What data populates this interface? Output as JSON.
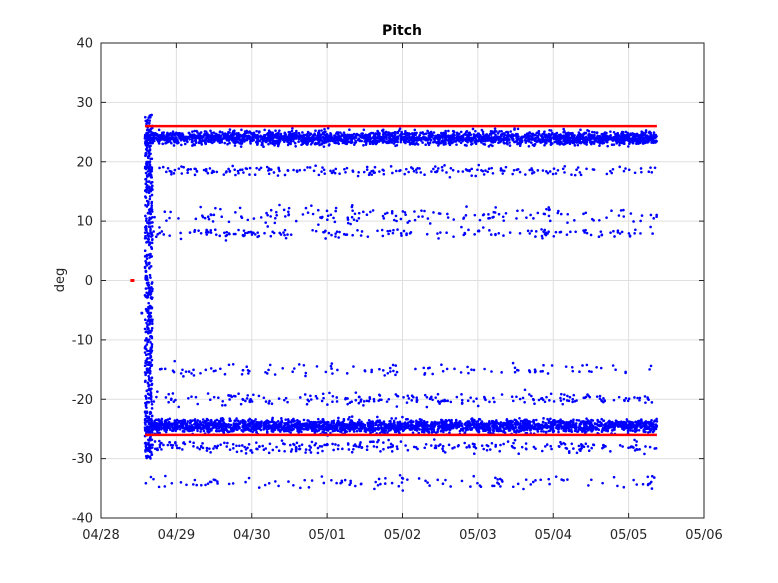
{
  "chart_data": {
    "type": "scatter",
    "title": "Pitch",
    "xlabel": "",
    "ylabel": "deg",
    "xlim": [
      "04/28",
      "05/06"
    ],
    "ylim": [
      -40,
      40
    ],
    "grid": true,
    "x_ticks": [
      "04/28",
      "04/29",
      "04/30",
      "05/01",
      "05/02",
      "05/03",
      "05/04",
      "05/05",
      "05/06"
    ],
    "y_ticks": [
      -40,
      -30,
      -20,
      -10,
      0,
      10,
      20,
      30,
      40
    ],
    "series": [
      {
        "color": "#0000ff",
        "x_range": [
          "04/28 14:00",
          "05/05 09:00"
        ],
        "clusters": [
          {
            "y_center": 24,
            "spread": 1.6
          },
          {
            "y_center": 18.5,
            "spread": 1.2
          },
          {
            "y_center": 11,
            "spread": 2
          },
          {
            "y_center": 8,
            "spread": 1.3
          },
          {
            "y_center": -15,
            "spread": 1.4
          },
          {
            "y_center": -20,
            "spread": 1.5
          },
          {
            "y_center": -24.5,
            "spread": 1.6
          },
          {
            "y_center": -28,
            "spread": 1.5
          },
          {
            "y_center": -34,
            "spread": 1.5
          }
        ],
        "initial_vertical_band": {
          "x": "04/28 14:00",
          "y_range": [
            -30,
            28
          ]
        },
        "outlier": {
          "x": "04/28 13:00",
          "y": -5.5
        }
      },
      {
        "color": "#ff0000",
        "lines": [
          {
            "y": 26,
            "x_range": [
              "04/28 14:00",
              "05/05 09:00"
            ]
          },
          {
            "y": -26,
            "x_range": [
              "04/28 14:00",
              "05/05 09:00"
            ]
          }
        ],
        "point": {
          "x": "04/28 10:00",
          "y": 0
        }
      }
    ]
  }
}
